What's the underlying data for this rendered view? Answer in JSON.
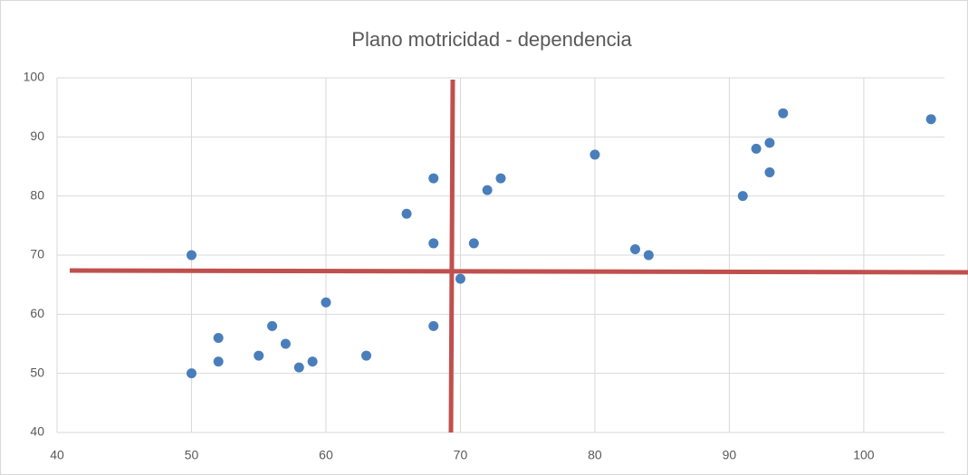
{
  "chart_data": {
    "type": "scatter",
    "title": "Plano motricidad - dependencia",
    "x": [
      50,
      50,
      52,
      52,
      55,
      56,
      57,
      58,
      59,
      60,
      63,
      66,
      68,
      68,
      68,
      70,
      71,
      72,
      73,
      80,
      83,
      84,
      91,
      92,
      93,
      93,
      94,
      105
    ],
    "values": [
      70,
      50,
      56,
      52,
      53,
      58,
      55,
      51,
      52,
      62,
      53,
      77,
      83,
      72,
      58,
      66,
      72,
      81,
      83,
      87,
      71,
      70,
      80,
      88,
      89,
      84,
      94,
      93
    ],
    "color": "#4a7ebb",
    "xlim": [
      40,
      106
    ],
    "xticks": [
      40,
      50,
      60,
      70,
      80,
      90,
      100
    ],
    "ylim": [
      40,
      100
    ],
    "yticks": [
      40,
      50,
      60,
      70,
      80,
      90,
      100
    ],
    "grid": true
  }
}
